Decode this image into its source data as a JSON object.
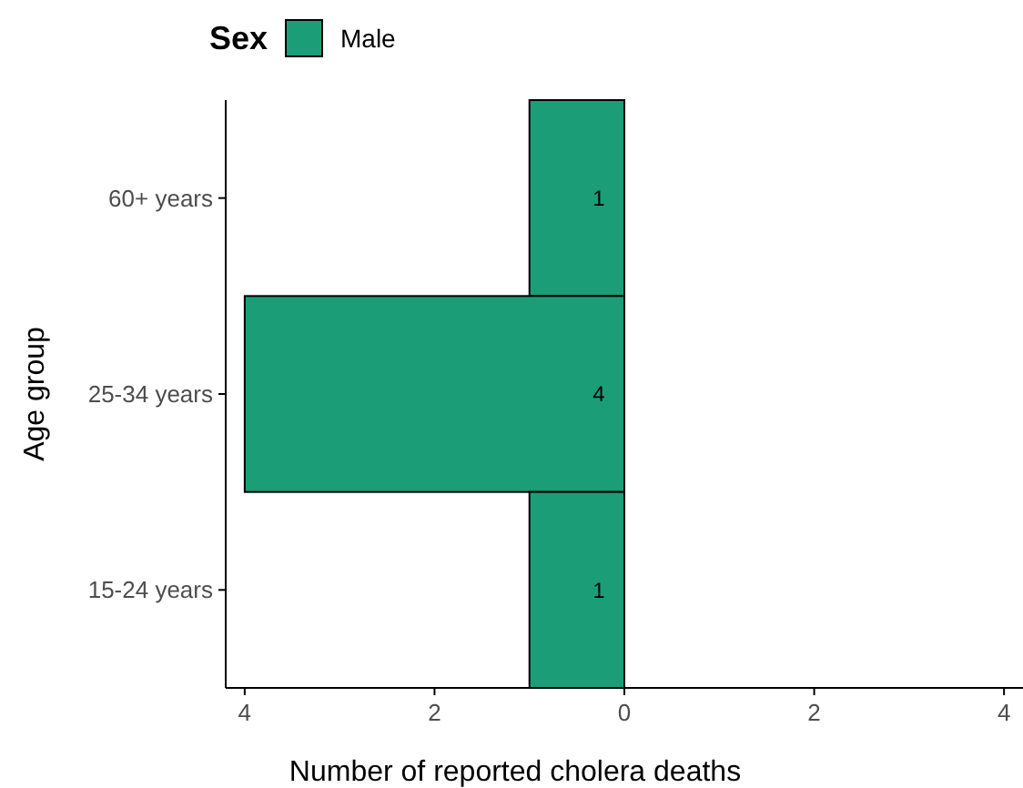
{
  "chart_data": {
    "type": "bar",
    "orientation": "horizontal",
    "categories": [
      "60+ years",
      "25-34 years",
      "15-24 years"
    ],
    "series": [
      {
        "name": "Male",
        "color": "#1b9e77",
        "values": [
          1,
          4,
          1
        ]
      }
    ],
    "data_labels": true,
    "xlim": [
      4.2,
      -4.2
    ],
    "xticks": [
      4,
      2,
      0,
      {
        "value": -2,
        "label": "2"
      },
      {
        "value": -4,
        "label": "4"
      }
    ],
    "xlabel": "Number of reported cholera deaths",
    "ylabel": "Age group",
    "legend_title": "Sex",
    "legend": "top left",
    "grid": false
  }
}
